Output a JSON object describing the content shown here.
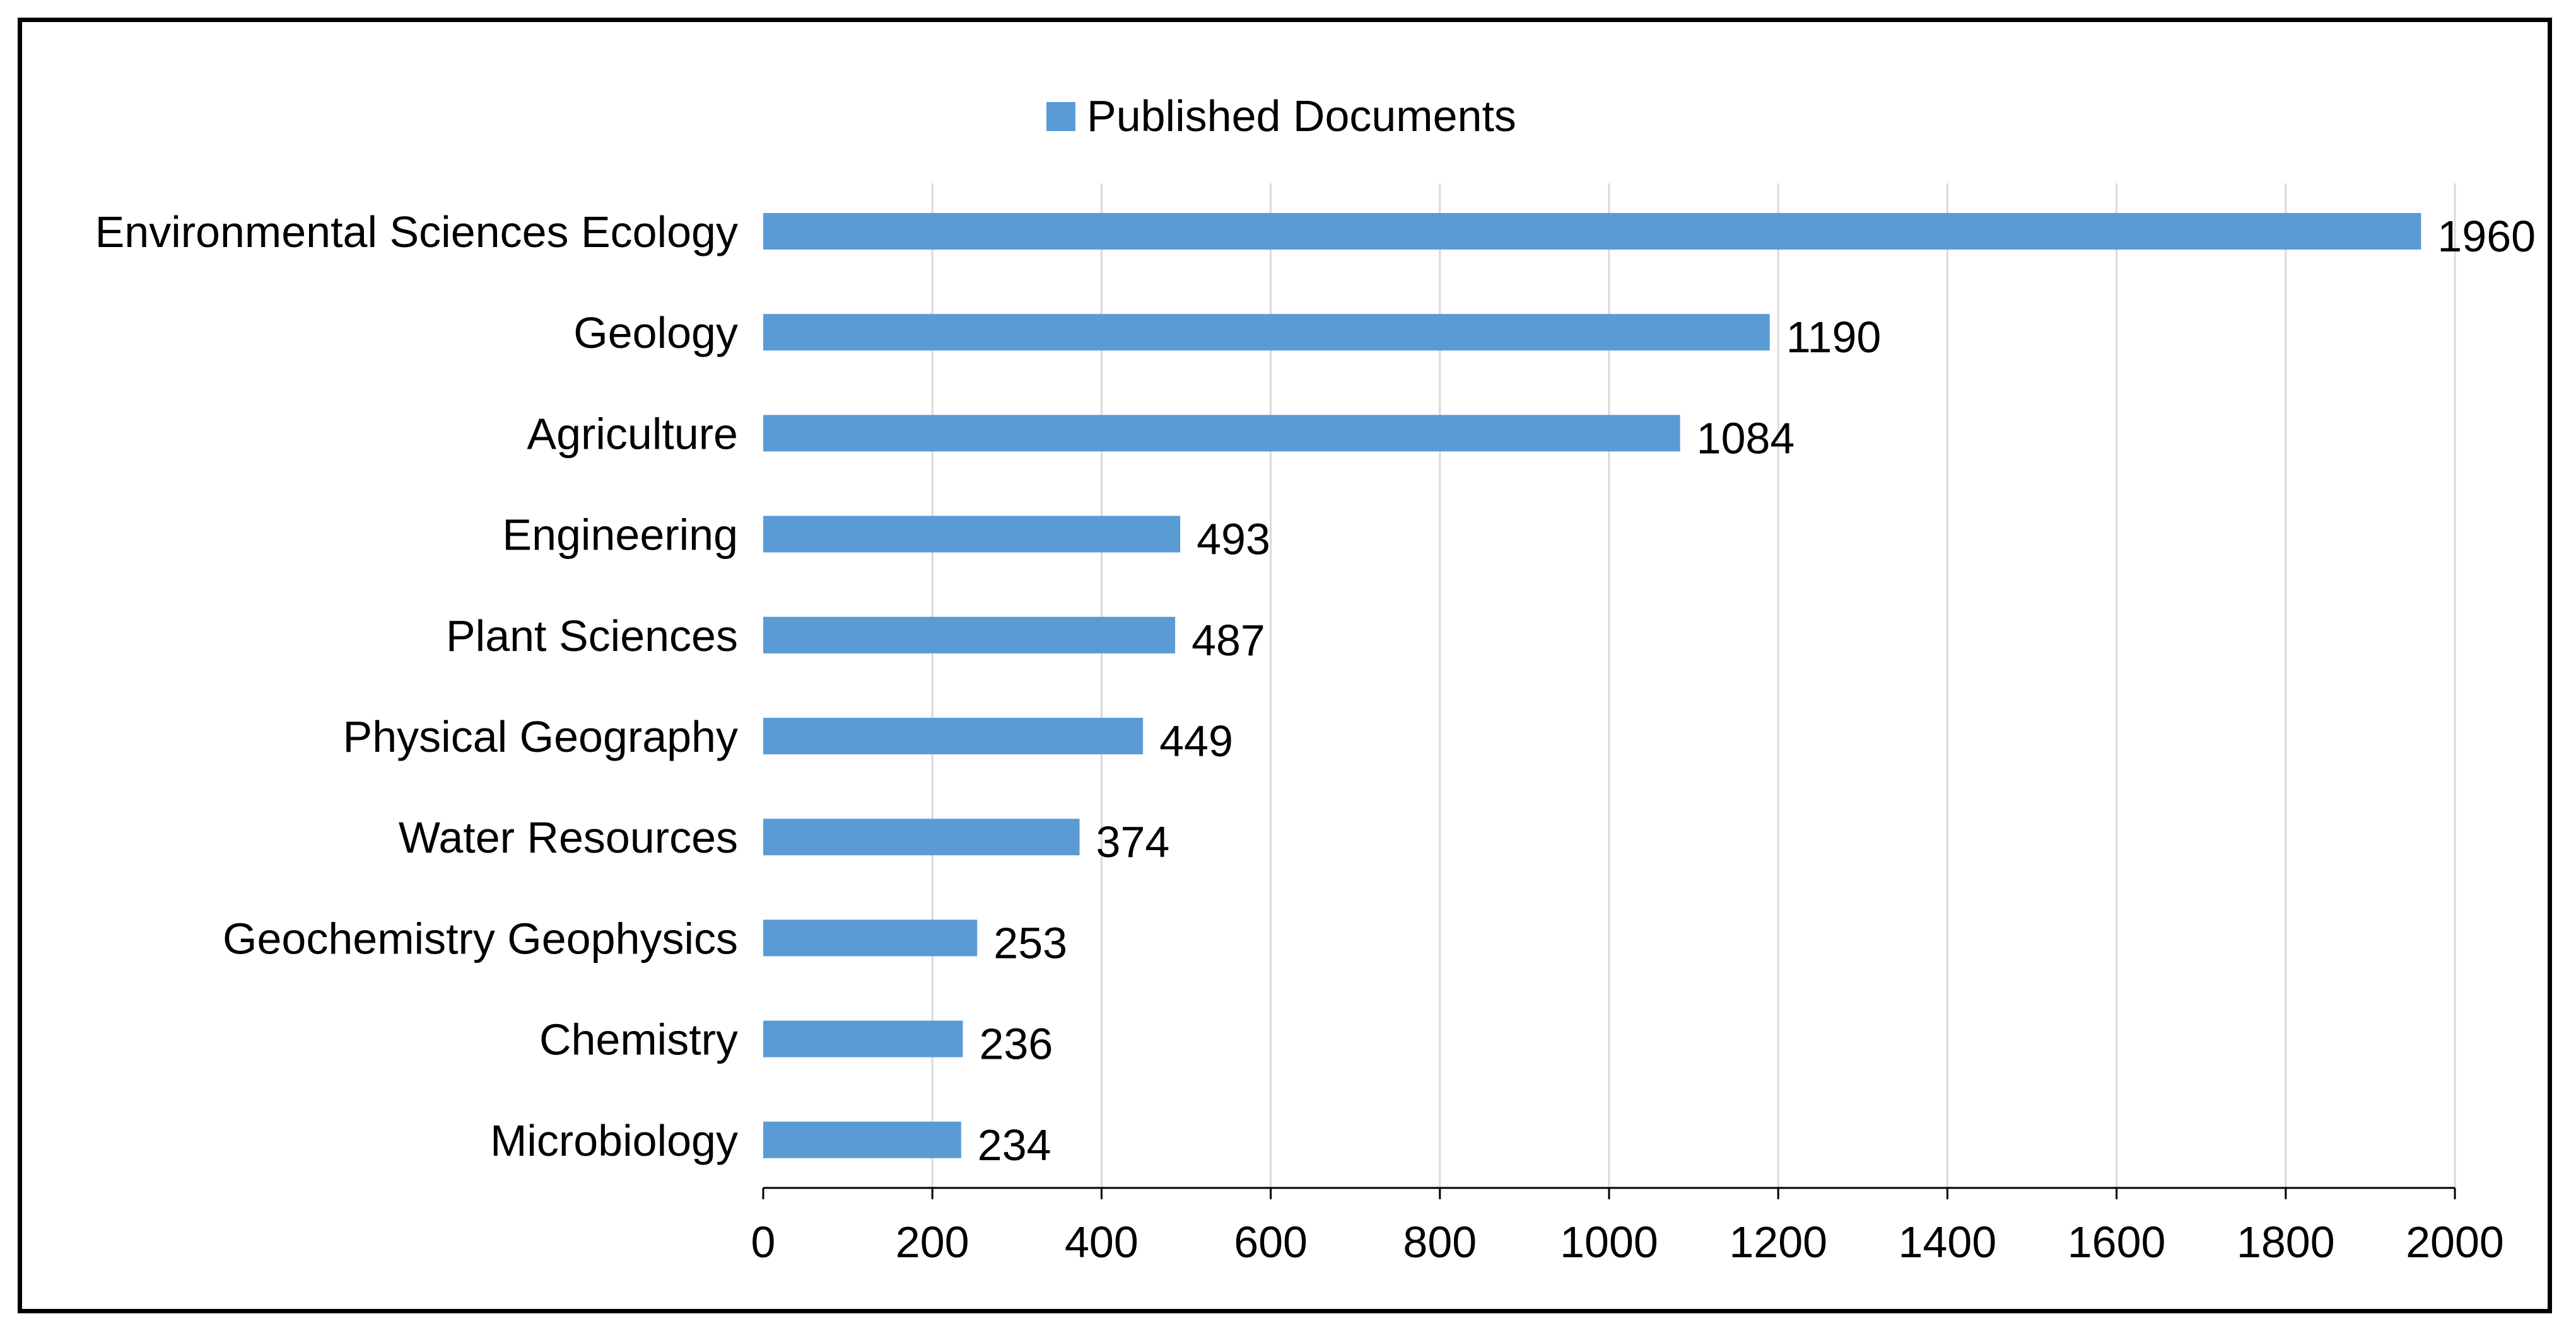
{
  "chart_data": {
    "type": "bar",
    "orientation": "horizontal",
    "categories": [
      "Environmental Sciences Ecology",
      "Geology",
      "Agriculture",
      "Engineering",
      "Plant Sciences",
      "Physical Geography",
      "Water Resources",
      "Geochemistry Geophysics",
      "Chemistry",
      "Microbiology"
    ],
    "series": [
      {
        "name": "Published Documents",
        "values": [
          1960,
          1190,
          1084,
          493,
          487,
          449,
          374,
          253,
          236,
          234
        ],
        "color": "#5B9BD5"
      }
    ],
    "xlim": [
      0,
      2000
    ],
    "xticks": [
      0,
      200,
      400,
      600,
      800,
      1000,
      1200,
      1400,
      1600,
      1800,
      2000
    ],
    "grid": "vertical",
    "legend_position": "top-center",
    "data_labels": true,
    "title": "",
    "xlabel": "",
    "ylabel": ""
  }
}
